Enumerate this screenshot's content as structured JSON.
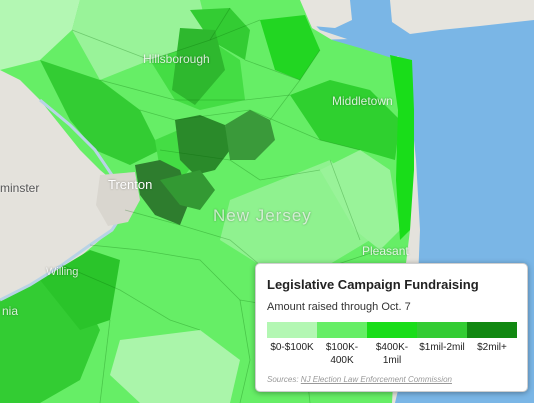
{
  "map": {
    "place_labels": {
      "hillsborough": "Hillsborough",
      "middletown": "Middletown",
      "trenton": "Trenton",
      "new_jersey": "New Jersey",
      "minster": "minster",
      "pleasant": "Pleasant",
      "willing": "Willing",
      "nia": "nia"
    },
    "colors": {
      "land_background": "#e8e6e1",
      "water": "#7ab6e6",
      "bin_0": "#b3f7b3",
      "bin_1": "#66ee66",
      "bin_2": "#19dd19",
      "bin_3": "#33cc33",
      "bin_4": "#118811",
      "dark_district": "#2a8a2a"
    }
  },
  "legend": {
    "title": "Legislative Campaign Fundraising",
    "subtitle": "Amount raised through Oct. 7",
    "bins": [
      {
        "label_line1": "$0-$100K",
        "label_line2": "",
        "color": "#b3f7b3"
      },
      {
        "label_line1": "$100K-",
        "label_line2": "400K",
        "color": "#66ee66"
      },
      {
        "label_line1": "$400K-",
        "label_line2": "1mil",
        "color": "#19dd19"
      },
      {
        "label_line1": "$1mil-2mil",
        "label_line2": "",
        "color": "#33cc33"
      },
      {
        "label_line1": "$2mil+",
        "label_line2": "",
        "color": "#118811"
      }
    ],
    "source_prefix": "Sources: ",
    "source_link": "NJ Election Law Enforcement Commission"
  }
}
